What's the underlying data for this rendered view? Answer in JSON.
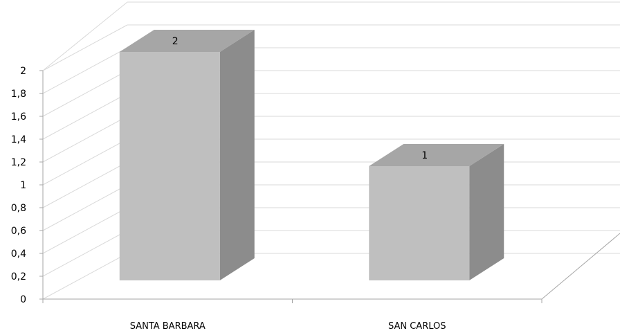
{
  "chart_data": {
    "type": "bar",
    "style": "3d-column",
    "categories": [
      "SANTA BARBARA",
      "SAN CARLOS"
    ],
    "values": [
      2,
      1
    ],
    "data_labels": [
      "2",
      "1"
    ],
    "ylim": [
      0,
      2
    ],
    "ytick_values": [
      0,
      0.2,
      0.4,
      0.6,
      0.8,
      1,
      1.2,
      1.4,
      1.6,
      1.8,
      2
    ],
    "ytick_labels": [
      "0",
      "0,2",
      "0,4",
      "0,6",
      "0,8",
      "1",
      "1,2",
      "1,4",
      "1,6",
      "1,8",
      "2"
    ],
    "title": "",
    "xlabel": "",
    "ylabel": "",
    "grid": true,
    "legend": "none",
    "colors": {
      "bar_front": "#bfbfbf",
      "bar_top": "#a6a6a6",
      "bar_side": "#8c8c8c",
      "grid": "#d9d9d9",
      "axis": "#a6a6a6"
    }
  }
}
